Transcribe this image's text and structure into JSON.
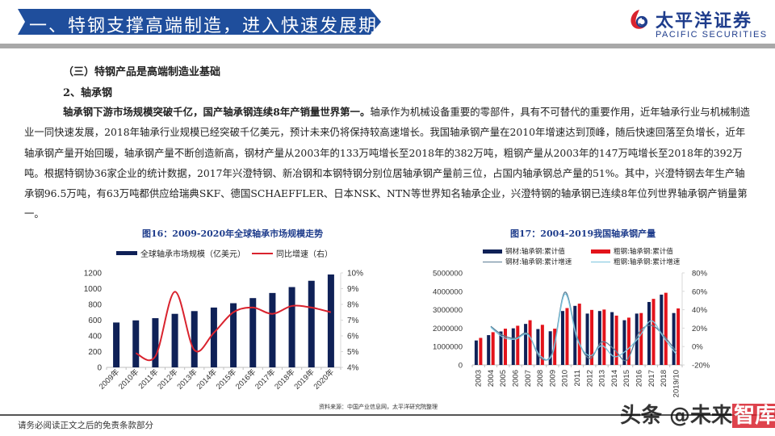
{
  "header": {
    "title": "一、特钢支撑高端制造，进入快速发展期",
    "banner_color": "#1f4e9c",
    "logo": {
      "name_cn": "太平洋证券",
      "name_en": "PACIFIC SECURITIES",
      "color": "#1f3d8c",
      "mark_color": "#d9232e"
    }
  },
  "content": {
    "section_heading": "（三）特钢产品是高端制造业基础",
    "sub_heading": "2、轴承钢",
    "lead_bold": "轴承钢下游市场规模突破千亿，国产轴承钢连续8年产销量世界第一。",
    "body": "轴承作为机械设备重要的零部件，具有不可替代的重要作用，近年轴承行业与机械制造业一同快速发展，2018年轴承行业规模已经突破千亿美元，预计未来仍将保持较高速增长。我国轴承钢产量在2010年增速达到顶峰，随后快速回落至负增长，近年轴承钢产量开始回暖，轴承钢产量不断创造新高，钢材产量从2003年的133万吨增长至2018年的382万吨，粗钢产量从2003年的147万吨增长至2018年的392万吨。根据特钢协36家企业的统计数据，2017年兴澄特钢、新冶钢和本钢特钢分别位居轴承钢产量前三位，占国内轴承钢总产量的51%。其中，兴澄特钢去年生产轴承钢96.5万吨，有63万吨都供应给瑞典SKF、德国SCHAEFFLER、日本NSK、NTN等世界知名轴承企业，兴澄特钢的轴承钢已连续8年位列世界轴承钢产销量第一。"
  },
  "chart_data": [
    {
      "type": "bar",
      "title": "图16：2009-2020年全球轴承市场规模走势",
      "categories": [
        "2009年",
        "2010年",
        "2011年",
        "2012年",
        "2013年",
        "2014年",
        "2015年",
        "2016年",
        "2017年",
        "2018年",
        "2019年",
        "2020年"
      ],
      "series": [
        {
          "name": "全球轴承市场规模（亿美元）",
          "type": "bar",
          "axis": "left",
          "color": "#0f2157",
          "values": [
            570,
            597,
            625,
            680,
            715,
            760,
            815,
            880,
            945,
            1020,
            1100,
            1180
          ]
        },
        {
          "name": "同比增速（右）",
          "type": "line",
          "axis": "right",
          "color": "#d9232e",
          "values": [
            null,
            4.9,
            4.7,
            8.8,
            5.1,
            6.2,
            7.5,
            7.8,
            7.4,
            7.9,
            7.8,
            7.5
          ]
        }
      ],
      "ylim": [
        0,
        1200
      ],
      "yticks": [
        "0",
        "200",
        "400",
        "600",
        "800",
        "1000",
        "1200"
      ],
      "y2lim": [
        4,
        10
      ],
      "y2ticks": [
        "4%",
        "5%",
        "6%",
        "7%",
        "8%",
        "9%",
        "10%"
      ],
      "legend_position": "top",
      "grid": false
    },
    {
      "type": "bar",
      "title": "图17：2004-2019我国轴承钢产量",
      "categories": [
        "2003",
        "2004",
        "2005",
        "2006",
        "2007",
        "2008",
        "2009",
        "2010",
        "2011",
        "2012",
        "2013",
        "2014",
        "2015",
        "2016",
        "2017",
        "2018",
        "2019/10"
      ],
      "series": [
        {
          "name": "钢材:轴承钢:累计值",
          "type": "bar",
          "axis": "left",
          "color": "#0f2157",
          "values": [
            1330000,
            1620000,
            1820000,
            1990000,
            2230000,
            1950000,
            1830000,
            2930000,
            3210000,
            2790000,
            2930000,
            2870000,
            2430000,
            2790000,
            3420000,
            3820000,
            2820000
          ]
        },
        {
          "name": "粗钢:轴承钢:累计值",
          "type": "bar",
          "axis": "left",
          "color": "#e3131b",
          "values": [
            1470000,
            1780000,
            1970000,
            2130000,
            2430000,
            2180000,
            1970000,
            3090000,
            3330000,
            2990000,
            3010000,
            2680000,
            2570000,
            2820000,
            3590000,
            3920000,
            3070000
          ]
        },
        {
          "name": "钢材:轴承钢:累计增速",
          "type": "line",
          "axis": "right",
          "color": "#5a7c93",
          "values": [
            null,
            22,
            12,
            9,
            14,
            -12,
            -6,
            59,
            10,
            -13,
            5,
            -3,
            -15,
            15,
            23,
            12,
            -5
          ]
        },
        {
          "name": "粗钢:轴承钢:累计增速",
          "type": "line",
          "axis": "right",
          "color": "#7cc4de",
          "values": [
            null,
            21,
            10,
            8,
            13,
            -10,
            -8,
            57,
            8,
            -10,
            1,
            -11,
            -4,
            10,
            28,
            10,
            -8
          ]
        }
      ],
      "ylim": [
        0,
        5000000
      ],
      "yticks": [
        "0",
        "1000000",
        "2000000",
        "3000000",
        "4000000",
        "5000000"
      ],
      "y2lim": [
        -20,
        80
      ],
      "y2ticks": [
        "-20%",
        "0%",
        "20%",
        "40%",
        "60%",
        "80%"
      ],
      "legend_position": "top",
      "grid": false
    }
  ],
  "charts": {
    "left": {
      "title": "图16：2009-2020年全球轴承市场规模走势",
      "legend": [
        "全球轴承市场规模（亿美元）",
        "同比增速（右）"
      ]
    },
    "right": {
      "title": "图17：2004-2019我国轴承钢产量",
      "legend": [
        "钢材:轴承钢:累计值",
        "粗钢:轴承钢:累计值",
        "钢材:轴承钢:累计增速",
        "粗钢:轴承钢:累计增速"
      ]
    },
    "source": "资料来源：中国产业信息网，太平洋研究院整理"
  },
  "footer": {
    "disclaimer": "请务必阅读正文之后的免责条款部分",
    "watermark_prefix": "头条 @未来",
    "watermark_highlight": "智库"
  }
}
